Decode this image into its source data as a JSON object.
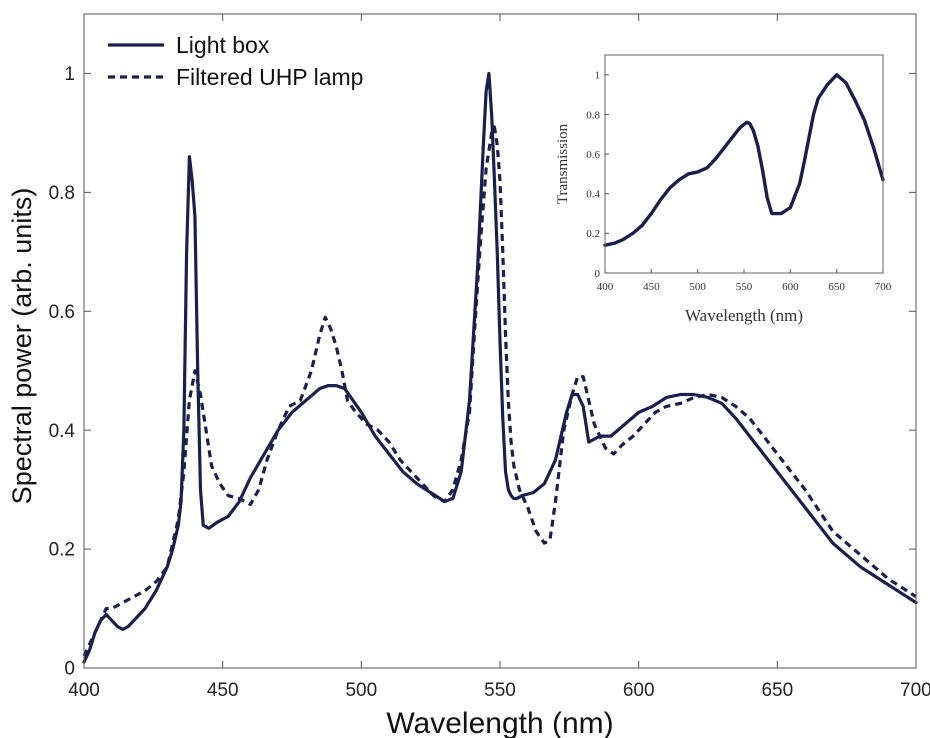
{
  "chart_data": [
    {
      "type": "line",
      "title": "",
      "xlabel": "Wavelength (nm)",
      "ylabel": "Spectral power (arb. units)",
      "xlim": [
        400,
        700
      ],
      "ylim": [
        0,
        1.1
      ],
      "xticks": [
        400,
        450,
        500,
        550,
        600,
        650,
        700
      ],
      "yticks": [
        0,
        0.2,
        0.4,
        0.6,
        0.8,
        1
      ],
      "xtick_labels": [
        "400",
        "450",
        "500",
        "550",
        "600",
        "650",
        "700"
      ],
      "ytick_labels": [
        "0",
        "0.2",
        "0.4",
        "0.6",
        "0.8",
        "1"
      ],
      "grid": false,
      "legend_position": "top-left",
      "series": [
        {
          "name": "Light box",
          "style": "solid",
          "color": "#1a1f4d",
          "x": [
            400,
            402,
            404,
            406,
            408,
            410,
            412,
            414,
            416,
            418,
            420,
            422,
            424,
            426,
            428,
            430,
            432,
            434,
            435,
            436,
            437,
            438,
            439,
            440,
            441,
            442,
            443,
            445,
            448,
            452,
            456,
            460,
            465,
            470,
            475,
            480,
            485,
            488,
            491,
            494,
            497,
            500,
            505,
            510,
            515,
            520,
            525,
            530,
            533,
            536,
            539,
            542,
            544,
            545,
            546,
            547,
            548,
            549,
            550,
            551,
            552,
            553,
            554,
            555,
            556,
            558,
            562,
            566,
            570,
            574,
            576,
            578,
            580,
            582,
            584,
            586,
            588,
            590,
            595,
            600,
            605,
            610,
            615,
            620,
            625,
            630,
            635,
            640,
            645,
            650,
            655,
            660,
            665,
            670,
            675,
            680,
            685,
            690,
            695,
            700
          ],
          "y": [
            0.01,
            0.03,
            0.06,
            0.08,
            0.09,
            0.08,
            0.07,
            0.065,
            0.07,
            0.08,
            0.09,
            0.1,
            0.115,
            0.13,
            0.15,
            0.17,
            0.2,
            0.24,
            0.28,
            0.4,
            0.7,
            0.86,
            0.82,
            0.76,
            0.5,
            0.3,
            0.24,
            0.235,
            0.245,
            0.255,
            0.28,
            0.32,
            0.36,
            0.4,
            0.43,
            0.45,
            0.47,
            0.475,
            0.475,
            0.47,
            0.45,
            0.43,
            0.39,
            0.36,
            0.33,
            0.31,
            0.295,
            0.28,
            0.285,
            0.33,
            0.45,
            0.68,
            0.88,
            0.97,
            1.0,
            0.93,
            0.82,
            0.7,
            0.55,
            0.42,
            0.33,
            0.3,
            0.29,
            0.285,
            0.285,
            0.29,
            0.295,
            0.31,
            0.35,
            0.43,
            0.46,
            0.46,
            0.44,
            0.38,
            0.385,
            0.39,
            0.39,
            0.39,
            0.41,
            0.43,
            0.44,
            0.455,
            0.46,
            0.46,
            0.455,
            0.445,
            0.42,
            0.39,
            0.36,
            0.33,
            0.3,
            0.27,
            0.24,
            0.21,
            0.19,
            0.17,
            0.155,
            0.14,
            0.125,
            0.11
          ]
        },
        {
          "name": "Filtered UHP lamp",
          "style": "dashed",
          "color": "#1a1f4d",
          "x": [
            400,
            403,
            406,
            408,
            410,
            414,
            418,
            422,
            426,
            430,
            434,
            436,
            438,
            440,
            442,
            444,
            446,
            449,
            452,
            456,
            460,
            463,
            466,
            470,
            474,
            478,
            482,
            485,
            487,
            489,
            491,
            493,
            495,
            498,
            502,
            506,
            510,
            514,
            518,
            522,
            526,
            530,
            533,
            536,
            539,
            541,
            543,
            545,
            547,
            548,
            549,
            550,
            551,
            552,
            553,
            554,
            555,
            557,
            560,
            563,
            566,
            568,
            570,
            573,
            576,
            578,
            580,
            582,
            584,
            586,
            588,
            591,
            594,
            598,
            602,
            606,
            610,
            615,
            620,
            625,
            630,
            635,
            640,
            650,
            660,
            670,
            680,
            690,
            700
          ],
          "y": [
            0.02,
            0.05,
            0.08,
            0.1,
            0.1,
            0.11,
            0.12,
            0.13,
            0.145,
            0.17,
            0.25,
            0.33,
            0.45,
            0.5,
            0.46,
            0.4,
            0.34,
            0.31,
            0.29,
            0.285,
            0.275,
            0.3,
            0.35,
            0.4,
            0.44,
            0.45,
            0.5,
            0.56,
            0.59,
            0.57,
            0.54,
            0.5,
            0.45,
            0.43,
            0.41,
            0.4,
            0.38,
            0.35,
            0.33,
            0.31,
            0.29,
            0.28,
            0.3,
            0.35,
            0.43,
            0.58,
            0.72,
            0.84,
            0.9,
            0.91,
            0.88,
            0.82,
            0.7,
            0.56,
            0.45,
            0.38,
            0.34,
            0.3,
            0.27,
            0.23,
            0.21,
            0.215,
            0.28,
            0.4,
            0.46,
            0.49,
            0.49,
            0.45,
            0.41,
            0.39,
            0.37,
            0.36,
            0.375,
            0.39,
            0.41,
            0.43,
            0.44,
            0.445,
            0.455,
            0.46,
            0.455,
            0.44,
            0.42,
            0.36,
            0.3,
            0.23,
            0.19,
            0.15,
            0.12
          ]
        }
      ]
    },
    {
      "type": "line",
      "title": "",
      "xlabel": "Wavelength (nm)",
      "ylabel": "Transmission",
      "xlim": [
        400,
        700
      ],
      "ylim": [
        0,
        1.1
      ],
      "xticks": [
        400,
        450,
        500,
        550,
        600,
        650,
        700
      ],
      "yticks": [
        0,
        0.2,
        0.4,
        0.6,
        0.8,
        1
      ],
      "xtick_labels": [
        "400",
        "450",
        "500",
        "550",
        "600",
        "650",
        "700"
      ],
      "ytick_labels": [
        "0",
        "0.2",
        "0.4",
        "0.6",
        "0.8",
        "1"
      ],
      "grid": false,
      "position": "inset top-right",
      "series": [
        {
          "style": "solid",
          "color": "#1a1f4d",
          "x": [
            400,
            410,
            420,
            430,
            440,
            450,
            460,
            470,
            480,
            490,
            500,
            510,
            520,
            525,
            530,
            535,
            540,
            545,
            550,
            553,
            556,
            560,
            565,
            570,
            575,
            580,
            590,
            600,
            610,
            615,
            620,
            625,
            630,
            640,
            650,
            660,
            670,
            680,
            690,
            700
          ],
          "y": [
            0.14,
            0.15,
            0.17,
            0.2,
            0.24,
            0.3,
            0.37,
            0.43,
            0.47,
            0.5,
            0.51,
            0.53,
            0.58,
            0.61,
            0.64,
            0.67,
            0.7,
            0.73,
            0.75,
            0.76,
            0.755,
            0.72,
            0.64,
            0.52,
            0.38,
            0.3,
            0.3,
            0.33,
            0.45,
            0.56,
            0.68,
            0.8,
            0.88,
            0.95,
            1.0,
            0.96,
            0.87,
            0.77,
            0.63,
            0.47
          ]
        }
      ]
    }
  ]
}
